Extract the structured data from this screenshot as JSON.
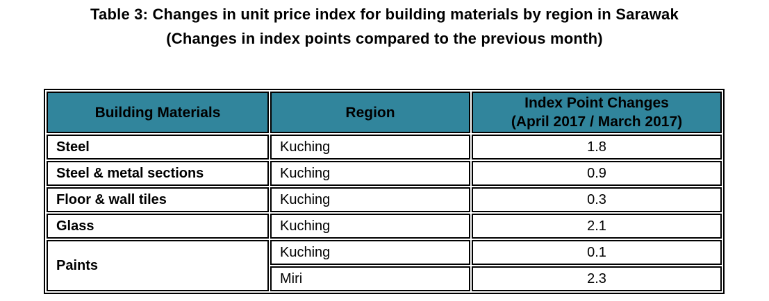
{
  "title": {
    "line1": "Table 3: Changes in unit price index for building materials by region in Sarawak",
    "line2": "(Changes in index points compared to the previous month)"
  },
  "colors": {
    "header_bg": "#31859C",
    "border": "#000000",
    "text": "#000000"
  },
  "table": {
    "headers": {
      "building_materials": "Building Materials",
      "region": "Region",
      "index_changes_line1": "Index Point Changes",
      "index_changes_line2": "(April 2017 / March 2017)"
    },
    "rows": [
      {
        "material": "Steel",
        "material_rowspan": 1,
        "region": "Kuching",
        "value": "1.8"
      },
      {
        "material": "Steel & metal sections",
        "material_rowspan": 1,
        "region": "Kuching",
        "value": "0.9"
      },
      {
        "material": "Floor & wall tiles",
        "material_rowspan": 1,
        "region": "Kuching",
        "value": "0.3"
      },
      {
        "material": "Glass",
        "material_rowspan": 1,
        "region": "Kuching",
        "value": "2.1"
      },
      {
        "material": "Paints",
        "material_rowspan": 2,
        "region": "Kuching",
        "value": "0.1"
      },
      {
        "region": "Miri",
        "value": "2.3"
      }
    ]
  }
}
